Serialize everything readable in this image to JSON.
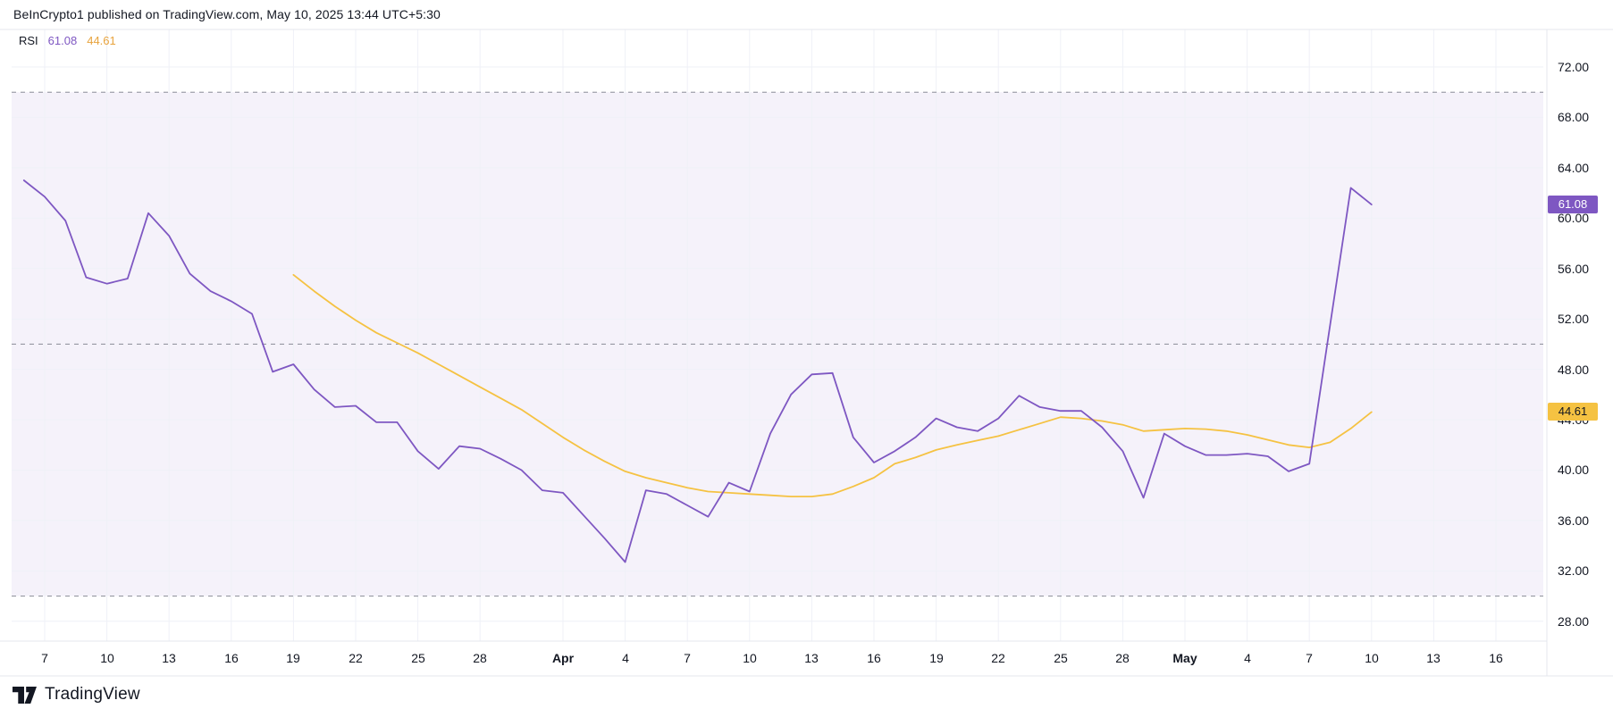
{
  "header": {
    "attribution": "BeInCrypto1 published on TradingView.com, May 10, 2025 13:44 UTC+5:30"
  },
  "legend": {
    "indicator": "RSI",
    "rsi_value": "61.08",
    "ma_value": "44.61"
  },
  "footer": {
    "logo_text": "TradingView"
  },
  "colors": {
    "rsi_line": "#7E57C2",
    "ma_line": "#F5C242",
    "band_fill": "rgba(126,87,194,0.08)",
    "limit_line": "#787B86",
    "grid": "#EFF1F7",
    "separator": "#E4E7EE",
    "text": "#131722",
    "rsi_badge_bg": "#7E57C2",
    "rsi_badge_text": "#FFFFFF",
    "ma_badge_bg": "#F5C242",
    "ma_badge_text": "#131722"
  },
  "axis_badges": [
    {
      "type": "rsi",
      "label": "61.08",
      "value": 61.08
    },
    {
      "type": "ma",
      "label": "44.61",
      "value": 44.61
    }
  ],
  "chart_data": {
    "type": "line",
    "title": "RSI",
    "xlabel": "",
    "ylabel": "",
    "grid": true,
    "legend_position": "top-left",
    "ylim": [
      26.4,
      75.0
    ],
    "y_ticks": [
      {
        "label": "72.00",
        "value": 72
      },
      {
        "label": "68.00",
        "value": 68
      },
      {
        "label": "64.00",
        "value": 64
      },
      {
        "label": "60.00",
        "value": 60
      },
      {
        "label": "56.00",
        "value": 56
      },
      {
        "label": "52.00",
        "value": 52
      },
      {
        "label": "48.00",
        "value": 48
      },
      {
        "label": "44.00",
        "value": 44
      },
      {
        "label": "40.00",
        "value": 40
      },
      {
        "label": "36.00",
        "value": 36
      },
      {
        "label": "32.00",
        "value": 32
      },
      {
        "label": "28.00",
        "value": 28
      }
    ],
    "limit_lines": [
      70,
      50,
      30
    ],
    "band": [
      30,
      70
    ],
    "x_ticks": [
      {
        "label": "7",
        "day": 1,
        "bold": false
      },
      {
        "label": "10",
        "day": 4,
        "bold": false
      },
      {
        "label": "13",
        "day": 7,
        "bold": false
      },
      {
        "label": "16",
        "day": 10,
        "bold": false
      },
      {
        "label": "19",
        "day": 13,
        "bold": false
      },
      {
        "label": "22",
        "day": 16,
        "bold": false
      },
      {
        "label": "25",
        "day": 19,
        "bold": false
      },
      {
        "label": "28",
        "day": 22,
        "bold": false
      },
      {
        "label": "Apr",
        "day": 26,
        "bold": true
      },
      {
        "label": "4",
        "day": 29,
        "bold": false
      },
      {
        "label": "7",
        "day": 32,
        "bold": false
      },
      {
        "label": "10",
        "day": 35,
        "bold": false
      },
      {
        "label": "13",
        "day": 38,
        "bold": false
      },
      {
        "label": "16",
        "day": 41,
        "bold": false
      },
      {
        "label": "19",
        "day": 44,
        "bold": false
      },
      {
        "label": "22",
        "day": 47,
        "bold": false
      },
      {
        "label": "25",
        "day": 50,
        "bold": false
      },
      {
        "label": "28",
        "day": 53,
        "bold": false
      },
      {
        "label": "May",
        "day": 56,
        "bold": true
      },
      {
        "label": "4",
        "day": 59,
        "bold": false
      },
      {
        "label": "7",
        "day": 62,
        "bold": false
      },
      {
        "label": "10",
        "day": 65,
        "bold": false
      },
      {
        "label": "13",
        "day": 68,
        "bold": false
      },
      {
        "label": "16",
        "day": 71,
        "bold": false
      }
    ],
    "x": [
      "Mar 6",
      "Mar 7",
      "Mar 8",
      "Mar 9",
      "Mar 10",
      "Mar 11",
      "Mar 12",
      "Mar 13",
      "Mar 14",
      "Mar 15",
      "Mar 16",
      "Mar 17",
      "Mar 18",
      "Mar 19",
      "Mar 20",
      "Mar 21",
      "Mar 22",
      "Mar 23",
      "Mar 24",
      "Mar 25",
      "Mar 26",
      "Mar 27",
      "Mar 28",
      "Mar 29",
      "Mar 30",
      "Mar 31",
      "Apr 1",
      "Apr 2",
      "Apr 3",
      "Apr 4",
      "Apr 5",
      "Apr 6",
      "Apr 7",
      "Apr 8",
      "Apr 9",
      "Apr 10",
      "Apr 11",
      "Apr 12",
      "Apr 13",
      "Apr 14",
      "Apr 15",
      "Apr 16",
      "Apr 17",
      "Apr 18",
      "Apr 19",
      "Apr 20",
      "Apr 21",
      "Apr 22",
      "Apr 23",
      "Apr 24",
      "Apr 25",
      "Apr 26",
      "Apr 27",
      "Apr 28",
      "Apr 29",
      "Apr 30",
      "May 1",
      "May 2",
      "May 3",
      "May 4",
      "May 5",
      "May 6",
      "May 7",
      "May 8",
      "May 9",
      "May 10"
    ],
    "series": [
      {
        "name": "RSI",
        "color_key": "rsi_line",
        "start_index": 0,
        "values": [
          63.0,
          61.7,
          59.8,
          55.3,
          54.8,
          55.2,
          60.4,
          58.6,
          55.6,
          54.2,
          53.4,
          52.4,
          47.8,
          48.4,
          46.4,
          45.0,
          45.1,
          43.8,
          43.8,
          41.5,
          40.1,
          41.9,
          41.7,
          40.9,
          40.0,
          38.4,
          38.2,
          36.4,
          34.6,
          32.7,
          38.4,
          38.1,
          37.2,
          36.3,
          39.0,
          38.3,
          42.9,
          46.0,
          47.6,
          47.7,
          42.6,
          40.6,
          41.5,
          42.6,
          44.1,
          43.4,
          43.1,
          44.1,
          45.9,
          45.0,
          44.7,
          44.7,
          43.4,
          41.5,
          37.8,
          42.9,
          41.9,
          41.2,
          41.2,
          41.3,
          41.1,
          39.9,
          40.5,
          51.5,
          62.4,
          61.08
        ]
      },
      {
        "name": "RSI-based MA",
        "color_key": "ma_line",
        "start_index": 13,
        "values": [
          55.5,
          54.2,
          53.0,
          51.9,
          50.9,
          50.1,
          49.3,
          48.4,
          47.5,
          46.6,
          45.7,
          44.8,
          43.7,
          42.6,
          41.6,
          40.7,
          39.9,
          39.4,
          39.0,
          38.6,
          38.3,
          38.2,
          38.1,
          38.0,
          37.9,
          37.9,
          38.1,
          38.7,
          39.4,
          40.5,
          41.0,
          41.6,
          42.0,
          42.35,
          42.7,
          43.2,
          43.7,
          44.2,
          44.1,
          43.9,
          43.6,
          43.1,
          43.2,
          43.3,
          43.25,
          43.1,
          42.8,
          42.4,
          42.0,
          41.8,
          42.2,
          43.3,
          44.61
        ]
      }
    ]
  }
}
